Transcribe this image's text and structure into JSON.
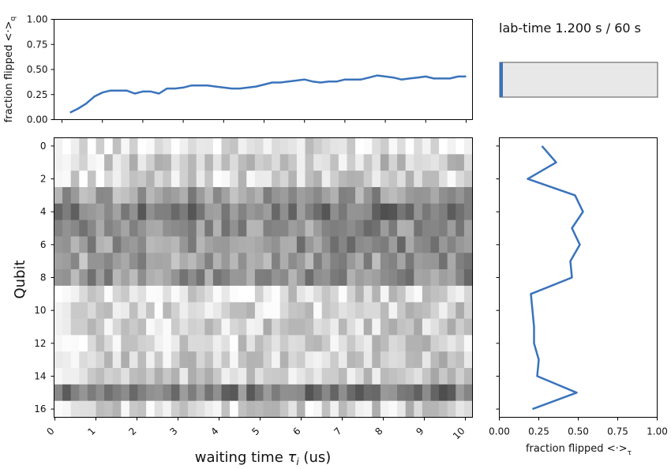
{
  "status": {
    "label": "lab-time 1.200 s / 60 s",
    "progress": 0.02
  },
  "colors": {
    "line": "#3a73bb",
    "bar_fill": "#e8e8e8",
    "bar_marker": "#3a73bb"
  },
  "chart_data": [
    {
      "id": "top",
      "type": "line",
      "ylabel": "fraction flipped <·>",
      "ylabel_sub": "q",
      "ylim": [
        0,
        1
      ],
      "yticks": [
        "0.00",
        "0.25",
        "0.50",
        "0.75",
        "1.00"
      ],
      "grid": false,
      "x": [
        0.2,
        0.4,
        0.6,
        0.8,
        1.0,
        1.2,
        1.4,
        1.6,
        1.8,
        2.0,
        2.2,
        2.4,
        2.6,
        2.8,
        3.0,
        3.2,
        3.4,
        3.6,
        3.8,
        4.0,
        4.2,
        4.4,
        4.6,
        4.8,
        5.0,
        5.2,
        5.4,
        5.6,
        5.8,
        6.0,
        6.2,
        6.4,
        6.6,
        6.8,
        7.0,
        7.2,
        7.4,
        7.6,
        7.8,
        8.0,
        8.2,
        8.4,
        8.6,
        8.8,
        9.0,
        9.2,
        9.4,
        9.6,
        9.8,
        10.0
      ],
      "y": [
        0.07,
        0.11,
        0.16,
        0.23,
        0.27,
        0.29,
        0.29,
        0.29,
        0.26,
        0.28,
        0.28,
        0.26,
        0.31,
        0.31,
        0.32,
        0.34,
        0.34,
        0.34,
        0.33,
        0.32,
        0.31,
        0.31,
        0.32,
        0.33,
        0.35,
        0.37,
        0.37,
        0.38,
        0.39,
        0.4,
        0.38,
        0.37,
        0.38,
        0.38,
        0.4,
        0.4,
        0.4,
        0.42,
        0.44,
        0.43,
        0.42,
        0.4,
        0.41,
        0.42,
        0.43,
        0.41,
        0.41,
        0.41,
        0.43,
        0.43
      ]
    },
    {
      "id": "heatmap",
      "type": "heatmap",
      "xlabel": "waiting time",
      "xlabel_tau": "τ",
      "xlabel_sub": "i",
      "xlabel_unit": " (us)",
      "ylabel": "Qubit",
      "xlim": [
        0,
        10
      ],
      "xticks": [
        "0",
        "1",
        "2",
        "3",
        "4",
        "5",
        "6",
        "7",
        "8",
        "9",
        "10"
      ],
      "yticks": [
        "0",
        "2",
        "4",
        "6",
        "8",
        "10",
        "12",
        "14",
        "16"
      ],
      "rows": 17,
      "cols": 50,
      "row_level": [
        0.1,
        0.18,
        0.15,
        0.4,
        0.55,
        0.45,
        0.45,
        0.4,
        0.45,
        0.13,
        0.15,
        0.17,
        0.15,
        0.18,
        0.17,
        0.55,
        0.15
      ],
      "colormap": "grays"
    },
    {
      "id": "right",
      "type": "line",
      "xlabel": "fraction flipped <·>",
      "xlabel_sub": "τ",
      "xlim": [
        0,
        1
      ],
      "xticks": [
        "0.00",
        "0.25",
        "0.50",
        "0.75",
        "1.00"
      ],
      "qubits": [
        0,
        1,
        2,
        3,
        4,
        5,
        6,
        7,
        8,
        9,
        10,
        11,
        12,
        13,
        14,
        15,
        16
      ],
      "values": [
        0.27,
        0.36,
        0.18,
        0.48,
        0.53,
        0.46,
        0.51,
        0.45,
        0.46,
        0.2,
        0.21,
        0.22,
        0.22,
        0.25,
        0.24,
        0.49,
        0.21
      ]
    }
  ]
}
